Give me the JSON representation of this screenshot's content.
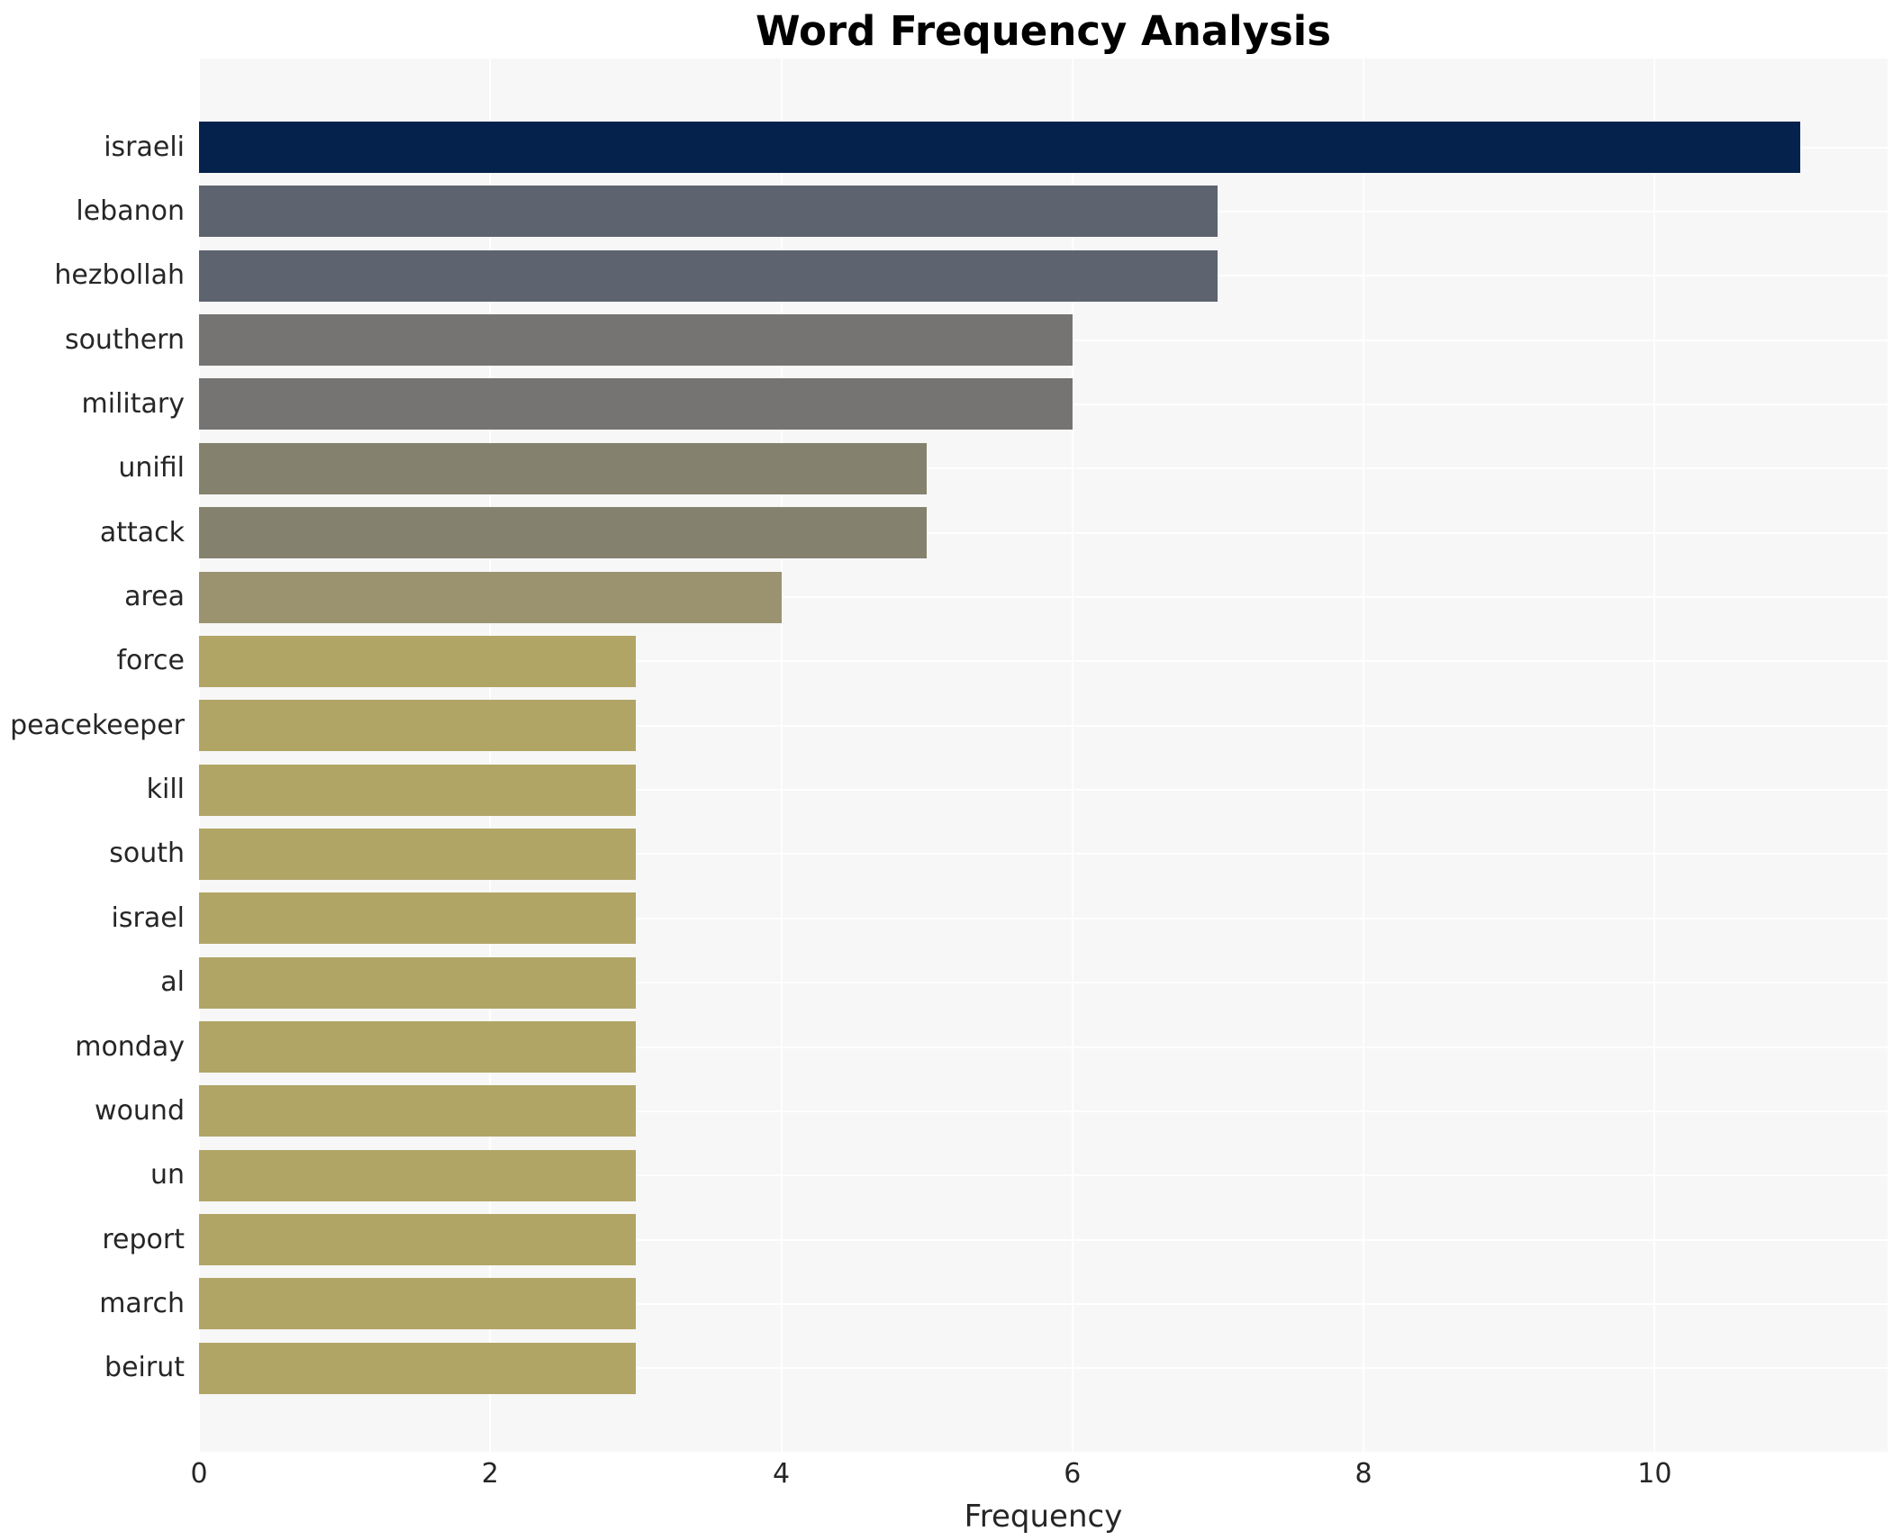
{
  "title": "Word Frequency Analysis",
  "chart_data": {
    "type": "bar",
    "orientation": "horizontal",
    "title": "Word Frequency Analysis",
    "xlabel": "Frequency",
    "ylabel": "",
    "categories": [
      "israeli",
      "lebanon",
      "hezbollah",
      "southern",
      "military",
      "unifil",
      "attack",
      "area",
      "force",
      "peacekeeper",
      "kill",
      "south",
      "israel",
      "al",
      "monday",
      "wound",
      "un",
      "report",
      "march",
      "beirut"
    ],
    "values": [
      11,
      7,
      7,
      6,
      6,
      5,
      5,
      4,
      3,
      3,
      3,
      3,
      3,
      3,
      3,
      3,
      3,
      3,
      3,
      3
    ],
    "bar_colors": [
      "#04224c",
      "#5e6370",
      "#5e6370",
      "#757473",
      "#757473",
      "#84826f",
      "#84826f",
      "#9b9270",
      "#b1a566",
      "#b1a566",
      "#b1a566",
      "#b1a566",
      "#b1a566",
      "#b1a566",
      "#b1a566",
      "#b1a566",
      "#b1a566",
      "#b1a566",
      "#b1a566",
      "#b1a566"
    ],
    "xticks": [
      0,
      2,
      4,
      6,
      8,
      10
    ],
    "xlim": [
      0,
      11.6
    ],
    "grid": "both, white lines on light gray panel",
    "legend": "none",
    "plot_bg_color": "#f7f7f7",
    "grid_color": "#ffffff",
    "text_color": "#262626",
    "title_color": "#000000"
  }
}
